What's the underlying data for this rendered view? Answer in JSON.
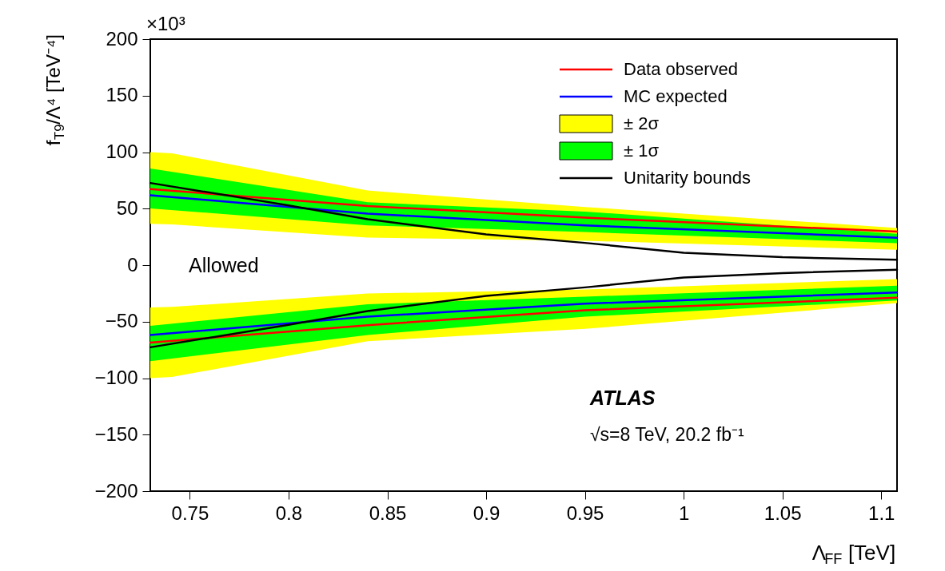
{
  "chart_data": {
    "type": "line",
    "xlabel": "Λ$_{FF}$ [TeV]",
    "ylabel": "f$_{T9}$/Λ⁴ [TeV⁻⁴]",
    "xlim": [
      0.73,
      1.108
    ],
    "xticks": [
      0.75,
      0.8,
      0.85,
      0.9,
      0.95,
      1,
      1.05,
      1.1
    ],
    "ylim": [
      -200,
      200
    ],
    "yticks": [
      -200,
      -150,
      -100,
      -50,
      0,
      50,
      100,
      150,
      200
    ],
    "grid": false,
    "legend": "top right",
    "series": [
      {
        "type": "area",
        "name": "± 2σ",
        "color": "#ffff00",
        "x": [
          0.73,
          0.741,
          0.84,
          0.95,
          1.108
        ],
        "values": [
          null,
          null,
          null,
          null,
          null
        ],
        "upper": [
          100,
          99,
          66,
          51.5,
          32.9
        ],
        "lower": [
          36.5,
          36,
          24.4,
          21.6,
          13.6
        ]
      },
      {
        "type": "area",
        "color": "#ffff00",
        "x": [
          0.73,
          0.741,
          0.84,
          0.95,
          1.108
        ],
        "values": [
          null,
          null,
          null,
          null,
          null
        ],
        "upper": [
          -37.4,
          -37,
          -25.1,
          -21.6,
          -12.4
        ],
        "lower": [
          -100,
          -99,
          -67.3,
          -56.4,
          -33.6
        ]
      },
      {
        "type": "area",
        "name": "± 1σ",
        "color": "#00ff00",
        "x": [
          0.73,
          0.84,
          0.95,
          1.108
        ],
        "values": [
          null,
          null,
          null,
          null
        ],
        "upper": [
          85.5,
          55.6,
          47.4,
          27.7
        ],
        "lower": [
          50.2,
          35.2,
          29.3,
          19.4
        ]
      },
      {
        "type": "area",
        "color": "#00ff00",
        "x": [
          0.73,
          0.84,
          0.95,
          1.108
        ],
        "values": [
          null,
          null,
          null,
          null
        ],
        "upper": [
          -53.7,
          -34.6,
          -27.9,
          -18.2
        ],
        "lower": [
          -85,
          -61.8,
          -45.6,
          -31.2
        ]
      },
      {
        "type": "line",
        "name": "Data observed",
        "color": "#ff0000",
        "x": [
          0.73,
          0.84,
          0.95,
          1.108
        ],
        "values": [
          67.3,
          52.3,
          42,
          29.6
        ]
      },
      {
        "type": "line",
        "color": "#ff0000",
        "x": [
          0.73,
          0.84,
          0.95,
          1.108
        ],
        "values": [
          -68.6,
          -53.1,
          -40,
          -28.8
        ]
      },
      {
        "type": "line",
        "name": "MC expected",
        "color": "#0000ff",
        "x": [
          0.73,
          0.84,
          0.95,
          1.108
        ],
        "values": [
          61.8,
          45.6,
          35.2,
          24.2
        ]
      },
      {
        "type": "line",
        "color": "#0000ff",
        "x": [
          0.73,
          0.84,
          0.95,
          1.108
        ],
        "values": [
          -61.8,
          -45.6,
          -34.1,
          -24.2
        ]
      },
      {
        "type": "line",
        "name": "Unitarity bounds",
        "color": "#000000",
        "x": [
          0.73,
          0.8,
          0.84,
          0.9,
          0.95,
          1.0,
          1.05,
          1.108
        ],
        "values": [
          72.7,
          52.9,
          40.6,
          27.2,
          19.7,
          11,
          7,
          4.8
        ]
      },
      {
        "type": "line",
        "color": "#000000",
        "x": [
          0.73,
          0.8,
          0.84,
          0.9,
          0.95,
          1.0,
          1.05,
          1.108
        ],
        "values": [
          -72.7,
          -52.9,
          -40.6,
          -27.2,
          -19.7,
          -11,
          -7,
          -4
        ]
      }
    ],
    "annotations": [
      "×10³",
      "Allowed",
      "ATLAS",
      "√s=8 TeV, 20.2 fb⁻¹"
    ]
  }
}
